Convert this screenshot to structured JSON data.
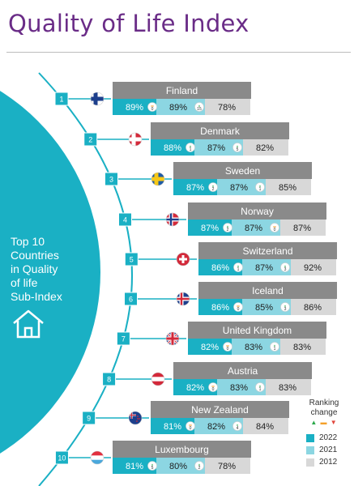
{
  "title": "Quality of Life Index",
  "side_label": [
    "Top 10",
    "Countries",
    "in Quality",
    "of life",
    "Sub-Index"
  ],
  "legend": {
    "title": [
      "Ranking",
      "change"
    ],
    "up_symbol": "▲",
    "same_symbol": "▬",
    "down_symbol": "▼",
    "items": [
      "2022",
      "2021",
      "2012"
    ]
  },
  "colors": {
    "y2022": "#1ab0c4",
    "y2021": "#8cd6e2",
    "y2012": "#d8d8d8",
    "header": "#8a8a8a",
    "up": "#2aa84a",
    "same": "#f4a02a",
    "down": "#e0473c",
    "title": "#6a2c87"
  },
  "chart_data": {
    "type": "table",
    "title": "Quality of Life Index",
    "columns": [
      "2022",
      "2021",
      "2012"
    ],
    "rows": [
      {
        "rank": "1",
        "country": "Finland",
        "flag": "finland-flag",
        "v2022": "89%",
        "chg22": "0",
        "v2021": "89%",
        "chg21": "15",
        "v2012": "78%"
      },
      {
        "rank": "2",
        "country": "Denmark",
        "flag": "denmark-flag",
        "v2022": "88%",
        "chg22": "1",
        "v2021": "87%",
        "chg21": "5",
        "v2012": "82%"
      },
      {
        "rank": "3",
        "country": "Sweden",
        "flag": "sweden-flag",
        "v2022": "87%",
        "chg22": "2",
        "v2021": "87%",
        "chg21": "1",
        "v2012": "85%"
      },
      {
        "rank": "4",
        "country": "Norway",
        "flag": "norway-flag",
        "v2022": "87%",
        "chg22": "2",
        "v2021": "87%",
        "chg21": "0",
        "v2012": "87%"
      },
      {
        "rank": "5",
        "country": "Switzerland",
        "flag": "switzerland-flag",
        "v2022": "86%",
        "chg22": "1",
        "v2021": "87%",
        "chg21": "3",
        "v2012": "92%"
      },
      {
        "rank": "6",
        "country": "Iceland",
        "flag": "iceland-flag",
        "v2022": "86%",
        "chg22": "0",
        "v2021": "85%",
        "chg21": "3",
        "v2012": "86%"
      },
      {
        "rank": "7",
        "country": "United Kingdom",
        "flag": "uk-flag",
        "v2022": "82%",
        "chg22": "0",
        "v2021": "83%",
        "chg21": "1",
        "v2012": "83%"
      },
      {
        "rank": "8",
        "country": "Austria",
        "flag": "austria-flag",
        "v2022": "82%",
        "chg22": "0",
        "v2021": "83%",
        "chg21": "1",
        "v2012": "83%"
      },
      {
        "rank": "9",
        "country": "New Zealand",
        "flag": "new-zealand-flag",
        "v2022": "81%",
        "chg22": "0",
        "v2021": "82%",
        "chg21": "4",
        "v2012": "84%"
      },
      {
        "rank": "10",
        "country": "Luxembourg",
        "flag": "luxembourg-flag",
        "v2022": "81%",
        "chg22": "5",
        "v2021": "80%",
        "chg21": "2",
        "v2012": "78%"
      }
    ]
  }
}
